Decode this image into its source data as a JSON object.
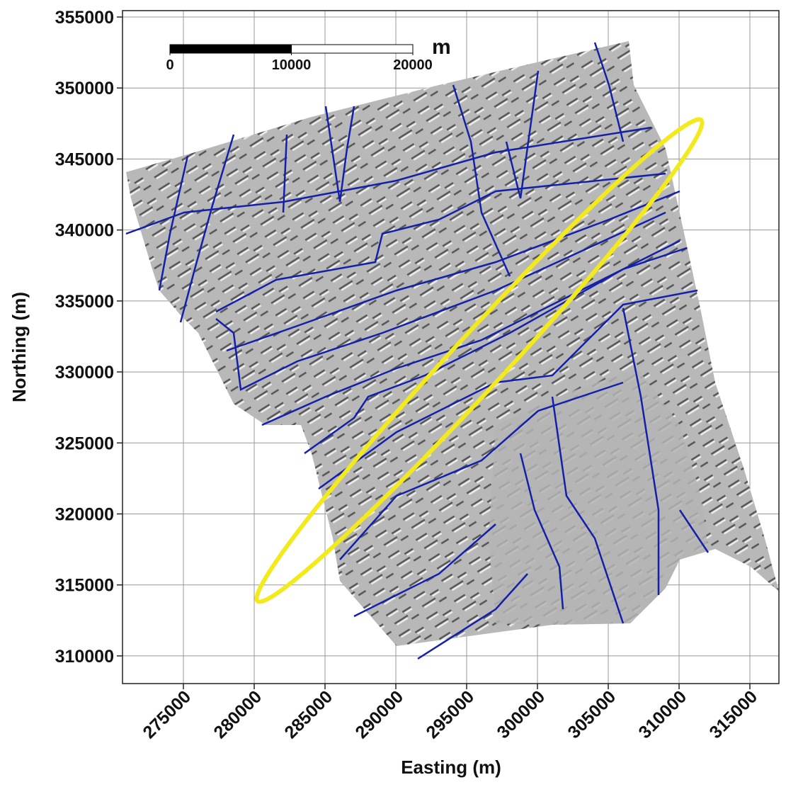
{
  "chart_data": {
    "type": "map",
    "xlabel": "Easting (m)",
    "ylabel": "Northing (m)",
    "xlim": [
      270700,
      317050
    ],
    "ylim": [
      308050,
      355450
    ],
    "xticks": [
      275000,
      280000,
      285000,
      290000,
      295000,
      300000,
      305000,
      310000,
      315000
    ],
    "yticks": [
      310000,
      315000,
      320000,
      325000,
      330000,
      335000,
      340000,
      345000,
      350000,
      355000
    ],
    "grid": true,
    "scale_bar": {
      "ticks": [
        0,
        10000,
        20000
      ],
      "unit": "m"
    }
  }
}
